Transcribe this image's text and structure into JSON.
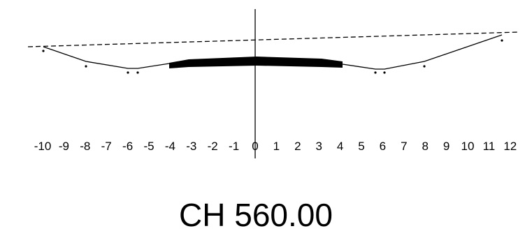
{
  "diagram": {
    "chainage_label": "CH 560.00",
    "offset_ticks": [
      "-10",
      "-9",
      "-8",
      "-7",
      "-6",
      "-5",
      "-4",
      "-3",
      "-2",
      "-1",
      "0",
      "1",
      "2",
      "3",
      "4",
      "5",
      "6",
      "7",
      "8",
      "9",
      "10",
      "11",
      "12"
    ],
    "colors": {
      "ink": "#000000",
      "background": "#ffffff"
    }
  }
}
